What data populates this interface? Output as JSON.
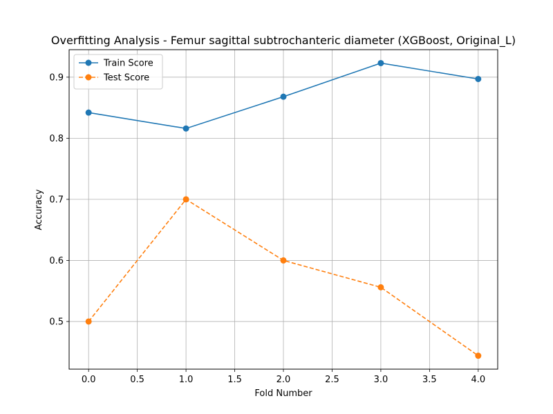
{
  "chart_data": {
    "type": "line",
    "title": "Overfitting Analysis - Femur sagittal subtrochanteric diameter (XGBoost, Original_L)",
    "xlabel": "Fold Number",
    "ylabel": "Accuracy",
    "x": [
      0,
      1,
      2,
      3,
      4
    ],
    "xlim": [
      -0.2,
      4.2
    ],
    "ylim": [
      0.422,
      0.945
    ],
    "xticks": [
      0.0,
      0.5,
      1.0,
      1.5,
      2.0,
      2.5,
      3.0,
      3.5,
      4.0
    ],
    "xtick_labels": [
      "0.0",
      "0.5",
      "1.0",
      "1.5",
      "2.0",
      "2.5",
      "3.0",
      "3.5",
      "4.0"
    ],
    "yticks": [
      0.5,
      0.6,
      0.7,
      0.8,
      0.9
    ],
    "ytick_labels": [
      "0.5",
      "0.6",
      "0.7",
      "0.8",
      "0.9"
    ],
    "grid": true,
    "legend_position": "top-left",
    "series": [
      {
        "name": "Train Score",
        "values": [
          0.842,
          0.816,
          0.868,
          0.923,
          0.897
        ],
        "color": "#1f77b4",
        "line_style": "solid",
        "marker": "circle"
      },
      {
        "name": "Test Score",
        "values": [
          0.5,
          0.7,
          0.6,
          0.556,
          0.444
        ],
        "color": "#ff7f0e",
        "line_style": "dashed",
        "marker": "circle"
      }
    ]
  }
}
